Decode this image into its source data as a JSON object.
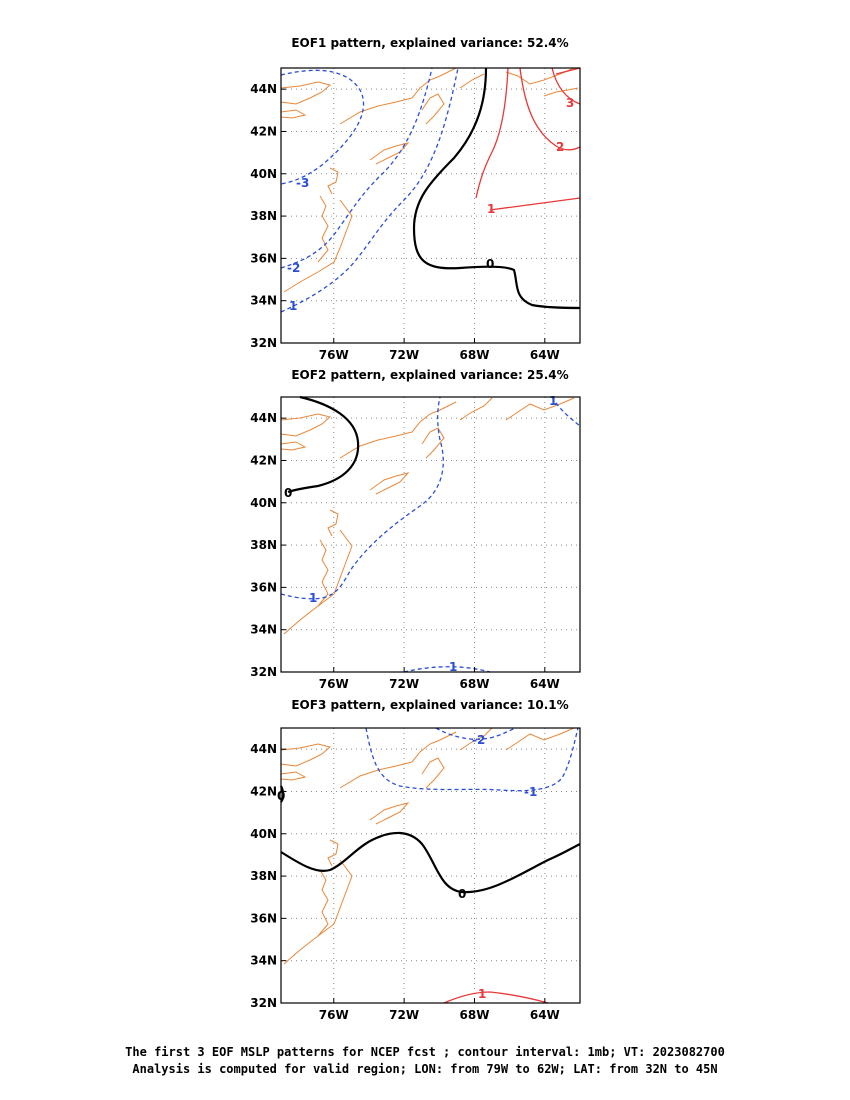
{
  "colors": {
    "coast": "#e8883a",
    "positive": "#e83838",
    "negative": "#2a4fd6",
    "zero": "#000000",
    "grid": "#888888"
  },
  "footer": {
    "line1": "The first 3 EOF MSLP patterns for NCEP fcst ; contour interval: 1mb; VT: 2023082700",
    "line2": "Analysis is computed for valid region; LON: from 79W to 62W; LAT: from 32N to 45N"
  },
  "chart_data": [
    {
      "type": "contour-map",
      "title": "EOF1 pattern, explained variance: 52.4%",
      "lon_range": [
        -79,
        -62
      ],
      "lat_range": [
        32,
        45
      ],
      "x_ticks": [
        "76W",
        "72W",
        "68W",
        "64W"
      ],
      "y_ticks": [
        "32N",
        "34N",
        "36N",
        "38N",
        "40N",
        "42N",
        "44N"
      ],
      "contour_labels": [
        "-3",
        "-2",
        "1",
        "0",
        "1",
        "2",
        "3"
      ]
    },
    {
      "type": "contour-map",
      "title": "EOF2 pattern, explained variance: 25.4%",
      "lon_range": [
        -79,
        -62
      ],
      "lat_range": [
        32,
        45
      ],
      "x_ticks": [
        "76W",
        "72W",
        "68W",
        "64W"
      ],
      "y_ticks": [
        "32N",
        "34N",
        "36N",
        "38N",
        "40N",
        "42N",
        "44N"
      ],
      "contour_labels": [
        "0",
        "1",
        "1",
        "1"
      ]
    },
    {
      "type": "contour-map",
      "title": "EOF3 pattern, explained variance: 10.1%",
      "lon_range": [
        -79,
        -62
      ],
      "lat_range": [
        32,
        45
      ],
      "x_ticks": [
        "76W",
        "72W",
        "68W",
        "64W"
      ],
      "y_ticks": [
        "32N",
        "34N",
        "36N",
        "38N",
        "40N",
        "42N",
        "44N"
      ],
      "contour_labels": [
        "-2",
        "-1",
        "0",
        "0",
        "1"
      ]
    }
  ]
}
